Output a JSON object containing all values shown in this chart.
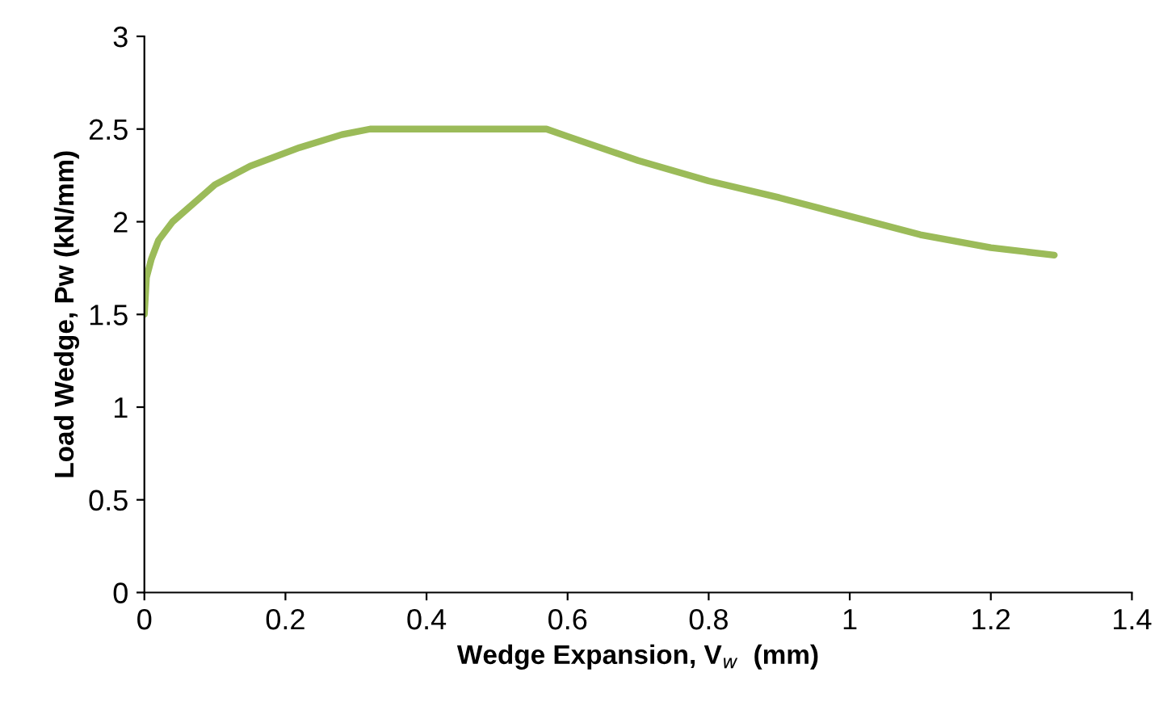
{
  "chart_data": {
    "type": "line",
    "xlabel": "Wedge Expansion, V$_{w}$  (mm)",
    "ylabel": "Load Wedge, Pw (kN/mm)",
    "xlim": [
      0,
      1.4
    ],
    "xticks": [
      0,
      0.2,
      0.4,
      0.6,
      0.8,
      1,
      1.2,
      1.4
    ],
    "ylim": [
      0,
      3
    ],
    "yticks": [
      0,
      0.5,
      1,
      1.5,
      2,
      2.5,
      3
    ],
    "grid": false,
    "legend": false,
    "marker": "none",
    "line_style": "solid",
    "series": [
      {
        "color": "#9bbb59",
        "x": [
          0,
          0.003,
          0.01,
          0.02,
          0.04,
          0.07,
          0.1,
          0.15,
          0.22,
          0.28,
          0.32,
          0.4,
          0.5,
          0.57,
          0.6,
          0.7,
          0.8,
          0.9,
          1.0,
          1.1,
          1.2,
          1.29
        ],
        "values": [
          1.5,
          1.7,
          1.8,
          1.9,
          2.0,
          2.1,
          2.2,
          2.3,
          2.4,
          2.47,
          2.5,
          2.5,
          2.5,
          2.5,
          2.46,
          2.33,
          2.22,
          2.13,
          2.03,
          1.93,
          1.86,
          1.82
        ]
      }
    ]
  }
}
